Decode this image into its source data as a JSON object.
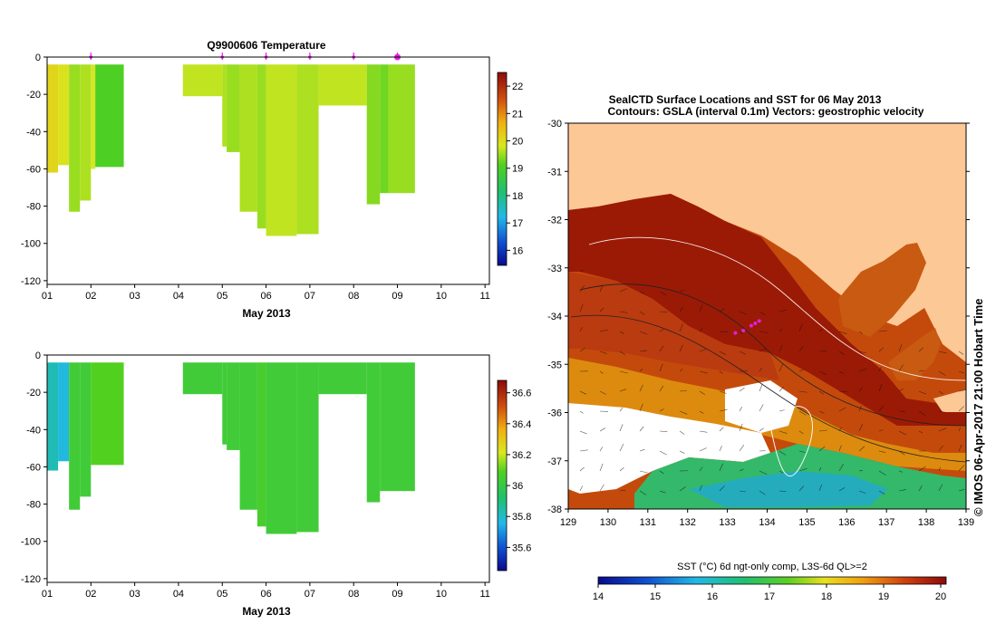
{
  "temperature_panel": {
    "title": "Q9900606  Temperature",
    "xlabel": "May 2013",
    "yticks": [
      "0",
      "-20",
      "-40",
      "-60",
      "-80",
      "-100",
      "-120"
    ],
    "xticks": [
      "01",
      "02",
      "03",
      "04",
      "05",
      "06",
      "07",
      "08",
      "09",
      "10",
      "11"
    ],
    "cbar_ticks": [
      "22",
      "21",
      "20",
      "19",
      "18",
      "17",
      "16"
    ]
  },
  "salinity_panel": {
    "xlabel": "May 2013",
    "yticks": [
      "0",
      "-20",
      "-40",
      "-60",
      "-80",
      "-100",
      "-120"
    ],
    "xticks": [
      "01",
      "02",
      "03",
      "04",
      "05",
      "06",
      "07",
      "08",
      "09",
      "10",
      "11"
    ],
    "cbar_ticks": [
      "36.6",
      "36.4",
      "36.2",
      "36",
      "35.8",
      "35.6"
    ]
  },
  "map_panel": {
    "title_line1": "SealCTD Surface Locations and SST for 06 May 2013",
    "title_line2": "Contours: GSLA (interval 0.1m) Vectors: geostrophic velocity",
    "yticks": [
      "-30",
      "-31",
      "-32",
      "-33",
      "-34",
      "-35",
      "-36",
      "-37",
      "-38"
    ],
    "xticks": [
      "129",
      "130",
      "131",
      "132",
      "133",
      "134",
      "135",
      "136",
      "137",
      "138",
      "139"
    ],
    "credit": "© IMOS 06-Apr-2017 21:00 Hobart Time",
    "cbar_label": "SST (°C) 6d ngt-only comp, L3S-6d QL>=2",
    "cbar_ticks": [
      "14",
      "15",
      "16",
      "17",
      "18",
      "19",
      "20"
    ]
  },
  "colors": {
    "land": "#fcc896",
    "sst_hot": "#9b1a06",
    "sst_warm": "#c44a0c",
    "sst_mid": "#e0920e",
    "marker": "#e020e0"
  },
  "chart_data": [
    {
      "type": "heatmap",
      "title": "Q9900606  Temperature",
      "xlabel": "May 2013",
      "ylabel": "",
      "xlim": [
        1,
        11.1
      ],
      "ylim": [
        -122,
        0
      ],
      "colorbar_range": [
        15.6,
        22.4
      ],
      "surfacing_days": [
        2,
        5,
        6,
        7,
        8,
        9
      ],
      "profiles": [
        {
          "x0": 1.0,
          "x1": 1.25,
          "bottom": -62,
          "value": 20.1
        },
        {
          "x0": 1.25,
          "x1": 1.5,
          "bottom": -58,
          "value": 19.9
        },
        {
          "x0": 1.5,
          "x1": 1.75,
          "bottom": -83,
          "value": 19.5
        },
        {
          "x0": 1.75,
          "x1": 2.0,
          "bottom": -77,
          "value": 19.6
        },
        {
          "x0": 2.0,
          "x1": 2.1,
          "bottom": -60,
          "value": 19.8
        },
        {
          "x0": 2.1,
          "x1": 2.75,
          "bottom": -59,
          "value": 19.1
        },
        {
          "x0": 4.1,
          "x1": 5.0,
          "bottom": -21,
          "value": 19.7
        },
        {
          "x0": 5.0,
          "x1": 5.1,
          "bottom": -48,
          "value": 19.6
        },
        {
          "x0": 5.1,
          "x1": 5.4,
          "bottom": -51,
          "value": 19.5
        },
        {
          "x0": 5.4,
          "x1": 5.8,
          "bottom": -83,
          "value": 19.6
        },
        {
          "x0": 5.8,
          "x1": 6.0,
          "bottom": -92,
          "value": 19.5
        },
        {
          "x0": 6.0,
          "x1": 6.7,
          "bottom": -96,
          "value": 19.7
        },
        {
          "x0": 6.7,
          "x1": 7.2,
          "bottom": -95,
          "value": 19.6
        },
        {
          "x0": 7.2,
          "x1": 8.3,
          "bottom": -26,
          "value": 19.7
        },
        {
          "x0": 8.3,
          "x1": 8.6,
          "bottom": -79,
          "value": 19.4
        },
        {
          "x0": 8.6,
          "x1": 8.8,
          "bottom": -73,
          "value": 19.3
        },
        {
          "x0": 8.8,
          "x1": 9.4,
          "bottom": -73,
          "value": 19.5
        }
      ]
    },
    {
      "type": "heatmap",
      "title": "",
      "xlabel": "May 2013",
      "ylabel": "",
      "xlim": [
        1,
        11.1
      ],
      "ylim": [
        -122,
        0
      ],
      "colorbar_range": [
        35.5,
        36.65
      ],
      "profiles": [
        {
          "x0": 1.0,
          "x1": 1.25,
          "bottom": -62,
          "value": 35.85
        },
        {
          "x0": 1.25,
          "x1": 1.5,
          "bottom": -57,
          "value": 35.8
        },
        {
          "x0": 1.5,
          "x1": 1.75,
          "bottom": -83,
          "value": 36.05
        },
        {
          "x0": 1.75,
          "x1": 2.0,
          "bottom": -76,
          "value": 36.05
        },
        {
          "x0": 2.0,
          "x1": 2.75,
          "bottom": -59,
          "value": 36.1
        },
        {
          "x0": 4.1,
          "x1": 5.0,
          "bottom": -21,
          "value": 36.05
        },
        {
          "x0": 5.0,
          "x1": 5.1,
          "bottom": -48,
          "value": 36.05
        },
        {
          "x0": 5.1,
          "x1": 5.4,
          "bottom": -51,
          "value": 36.05
        },
        {
          "x0": 5.4,
          "x1": 5.8,
          "bottom": -83,
          "value": 36.05
        },
        {
          "x0": 5.8,
          "x1": 6.0,
          "bottom": -92,
          "value": 36.07
        },
        {
          "x0": 6.0,
          "x1": 6.7,
          "bottom": -96,
          "value": 36.05
        },
        {
          "x0": 6.7,
          "x1": 7.2,
          "bottom": -95,
          "value": 36.05
        },
        {
          "x0": 7.2,
          "x1": 8.3,
          "bottom": -21,
          "value": 36.05
        },
        {
          "x0": 8.3,
          "x1": 8.6,
          "bottom": -79,
          "value": 36.05
        },
        {
          "x0": 8.6,
          "x1": 9.4,
          "bottom": -73,
          "value": 36.05
        }
      ]
    },
    {
      "type": "heatmap",
      "title": "SealCTD Surface Locations and SST for 06 May 2013",
      "xlabel": "",
      "ylabel": "",
      "xlim": [
        129,
        139
      ],
      "ylim": [
        -38,
        -30
      ],
      "colorbar_range": [
        14,
        20
      ],
      "colorbar_label": "SST (°C) 6d ngt-only comp, L3S-6d QL>=2",
      "seal_locations": [
        [
          133.6,
          -34.2
        ],
        [
          133.4,
          -34.3
        ],
        [
          133.7,
          -34.15
        ],
        [
          133.2,
          -34.35
        ],
        [
          133.8,
          -34.1
        ]
      ]
    }
  ]
}
